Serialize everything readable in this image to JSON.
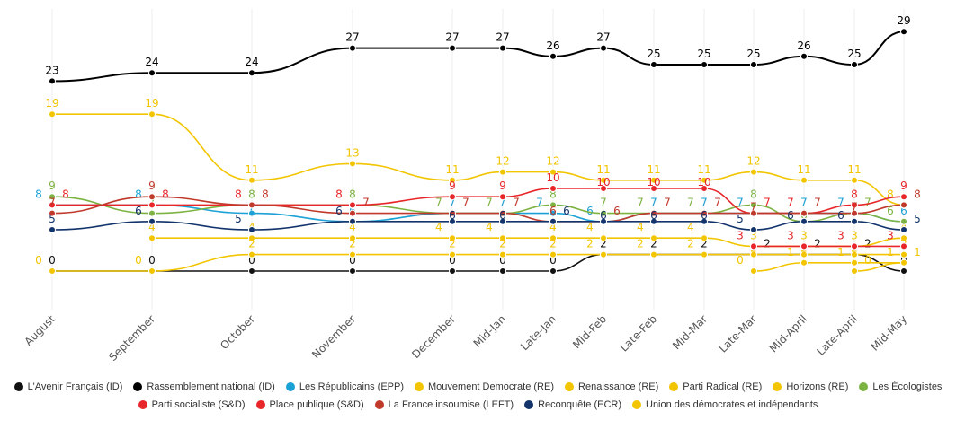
{
  "chart_data": {
    "type": "line",
    "categories": [
      "August",
      "September",
      "October",
      "November",
      "December",
      "Mid-Jan",
      "Late-Jan",
      "Mid-Feb",
      "Late-Feb",
      "Mid-Mar",
      "Late-Mar",
      "Mid-April",
      "Late-April",
      "Mid-May"
    ],
    "ylim": [
      0,
      30
    ],
    "grid": "vertical",
    "legend": "bottom",
    "series": [
      {
        "name": "L'Avenir Français (ID)",
        "color": "#111111",
        "values": [
          0,
          0,
          0,
          0,
          0,
          0,
          0,
          2,
          2,
          2,
          2,
          2,
          2,
          0
        ]
      },
      {
        "name": "Rassemblement national (ID)",
        "color": "#000000",
        "values": [
          23,
          24,
          24,
          27,
          27,
          27,
          26,
          27,
          25,
          25,
          25,
          26,
          25,
          29
        ]
      },
      {
        "name": "Les Républicains (EPP)",
        "color": "#1ba1d6",
        "values": [
          8,
          8,
          7,
          6,
          7,
          7,
          7,
          6,
          7,
          7,
          7,
          7,
          7,
          6
        ]
      },
      {
        "name": "Mouvement Democrate (RE)",
        "color": "#f2c500",
        "values": [
          null,
          4,
          4,
          4,
          4,
          4,
          4,
          4,
          4,
          4,
          3,
          3,
          3,
          4
        ]
      },
      {
        "name": "Renaissance (RE)",
        "color": "#f2c500",
        "values": [
          19,
          19,
          11,
          13,
          11,
          12,
          12,
          11,
          11,
          11,
          12,
          11,
          11,
          8
        ]
      },
      {
        "name": "Parti Radical (RE)",
        "color": "#f2c500",
        "values": [
          null,
          null,
          null,
          null,
          null,
          null,
          null,
          null,
          null,
          null,
          0,
          1,
          1,
          1
        ]
      },
      {
        "name": "Horizons (RE)",
        "color": "#f2c500",
        "values": [
          0,
          0,
          2,
          2,
          2,
          2,
          2,
          2,
          2,
          2,
          2,
          2,
          2,
          2
        ]
      },
      {
        "name": "Les Écologistes",
        "color": "#7cb342",
        "values": [
          9,
          7,
          8,
          8,
          7,
          7,
          8,
          7,
          7,
          7,
          8,
          6,
          7,
          6
        ]
      },
      {
        "name": "Parti socialiste (S&D)",
        "color": "#e8262a",
        "values": [
          8,
          8,
          8,
          8,
          9,
          9,
          10,
          10,
          10,
          10,
          7,
          7,
          8,
          9
        ]
      },
      {
        "name": "Place publique (S&D)",
        "color": "#e8262a",
        "values": [
          null,
          null,
          null,
          null,
          null,
          null,
          null,
          null,
          null,
          null,
          3,
          3,
          3,
          3
        ]
      },
      {
        "name": "La France insoumise (LEFT)",
        "color": "#c0392b",
        "values": [
          7,
          9,
          8,
          7,
          7,
          7,
          6,
          6,
          7,
          7,
          7,
          7,
          7,
          8
        ]
      },
      {
        "name": "Reconquête (ECR)",
        "color": "#12336b",
        "values": [
          5,
          6,
          5,
          6,
          6,
          6,
          6,
          6,
          6,
          6,
          5,
          6,
          6,
          5
        ]
      },
      {
        "name": "Union des démocrates et indépendants",
        "color": "#f2c500",
        "values": [
          null,
          null,
          null,
          null,
          null,
          null,
          null,
          null,
          null,
          null,
          null,
          null,
          0,
          1
        ]
      }
    ]
  }
}
